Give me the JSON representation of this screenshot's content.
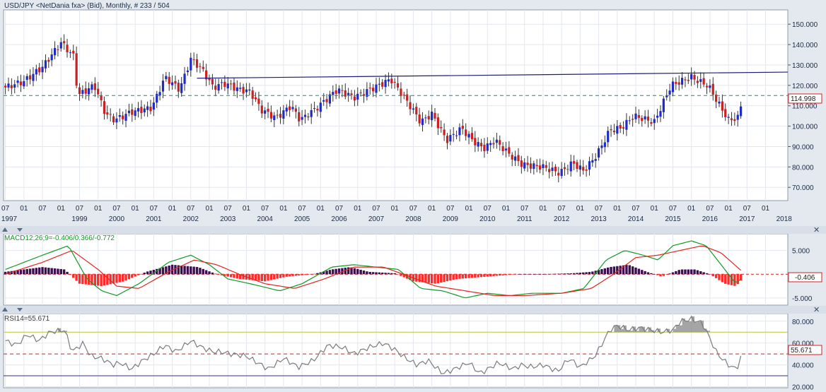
{
  "header": {
    "title": "USD/JPY <NetDania fxa> (Bid), Monthly, # 233 / 504"
  },
  "price_tag": "114.998",
  "macd_tag": "-0.406",
  "rsi_tag": "55.671",
  "colors": {
    "up": "#1f2bc8",
    "down": "#cc1f1f",
    "macd": "#0e9b25",
    "signal": "#e0261f",
    "hist_pos": "#3d0f52",
    "hist_neg": "#ff2a2a",
    "rsi_line": "#7b7b7b",
    "trendline": "#1d1d7a",
    "dashed_level": "#1a8a7a",
    "rsi_upper": "#b9c43a",
    "rsi_lower": "#3d2a8a"
  },
  "close_icon": "✕",
  "chart_data": [
    {
      "type": "candlestick",
      "title": "USD/JPY <NetDania fxa> (Bid), Monthly, # 233 / 504",
      "y_ticks": [
        "150.000",
        "140.000",
        "130.000",
        "120.000",
        "110.000",
        "100.000",
        "90.000",
        "80.000",
        "70.000"
      ],
      "ylim": [
        63.5,
        157
      ],
      "x_month_labels": [
        "07",
        "01",
        "07",
        "01",
        "07",
        "01",
        "07",
        "01",
        "07",
        "01",
        "07",
        "01",
        "07",
        "01",
        "07",
        "01",
        "07",
        "01",
        "07",
        "01",
        "07",
        "01",
        "07",
        "01",
        "07",
        "01",
        "07",
        "01",
        "07",
        "01",
        "07",
        "01",
        "07",
        "01",
        "07",
        "01",
        "07",
        "01",
        "07",
        "01",
        "07",
        "01"
      ],
      "x_year_labels": [
        "1997",
        "1999",
        "2000",
        "2001",
        "2002",
        "2003",
        "2004",
        "2005",
        "2006",
        "2007",
        "2008",
        "2009",
        "2010",
        "2011",
        "2012",
        "2013",
        "2014",
        "2015",
        "2016",
        "2017",
        "2018"
      ],
      "last_close": 114.998,
      "horizontal_level": 114.998,
      "trendline": {
        "from": {
          "date": "2002-03",
          "value": 123.5
        },
        "to": {
          "date": "2018-02",
          "value": 126.5
        }
      },
      "close_path": [
        [
          1997.0,
          119
        ],
        [
          1997.5,
          122
        ],
        [
          1998.0,
          129
        ],
        [
          1998.5,
          141
        ],
        [
          1998.85,
          134
        ],
        [
          1998.95,
          115
        ],
        [
          1999.4,
          120
        ],
        [
          1999.7,
          106
        ],
        [
          1999.95,
          103
        ],
        [
          2000.4,
          107
        ],
        [
          2000.95,
          109
        ],
        [
          2001.3,
          124
        ],
        [
          2001.7,
          118
        ],
        [
          2002.0,
          133
        ],
        [
          2002.3,
          128
        ],
        [
          2002.6,
          119
        ],
        [
          2002.9,
          121
        ],
        [
          2003.3,
          118
        ],
        [
          2003.6,
          117
        ],
        [
          2003.9,
          108
        ],
        [
          2004.3,
          104
        ],
        [
          2004.7,
          110
        ],
        [
          2004.95,
          103
        ],
        [
          2005.4,
          109
        ],
        [
          2005.95,
          118
        ],
        [
          2006.4,
          114
        ],
        [
          2006.95,
          119
        ],
        [
          2007.4,
          123
        ],
        [
          2007.6,
          118
        ],
        [
          2007.95,
          109
        ],
        [
          2008.2,
          102
        ],
        [
          2008.5,
          106
        ],
        [
          2008.9,
          93
        ],
        [
          2009.3,
          99
        ],
        [
          2009.6,
          93
        ],
        [
          2009.9,
          89
        ],
        [
          2010.2,
          93
        ],
        [
          2010.6,
          86
        ],
        [
          2010.95,
          81
        ],
        [
          2011.5,
          80
        ],
        [
          2011.95,
          77
        ],
        [
          2012.3,
          82
        ],
        [
          2012.6,
          78
        ],
        [
          2012.95,
          86
        ],
        [
          2013.3,
          98
        ],
        [
          2013.6,
          99
        ],
        [
          2013.95,
          105
        ],
        [
          2014.5,
          102
        ],
        [
          2014.95,
          120
        ],
        [
          2015.5,
          124
        ],
        [
          2015.8,
          121
        ],
        [
          2015.95,
          120
        ],
        [
          2016.2,
          112
        ],
        [
          2016.5,
          103
        ],
        [
          2016.75,
          104
        ],
        [
          2016.9,
          114.998
        ]
      ]
    },
    {
      "type": "line",
      "title": "MACD12;26;9=-0.406/0.366/-0.772",
      "series": [
        {
          "name": "MACD12;26;9",
          "values_path": [
            [
              1997,
              1
            ],
            [
              1998,
              4
            ],
            [
              1998.7,
              6
            ],
            [
              1999.2,
              -1
            ],
            [
              1999.6,
              -3.5
            ],
            [
              2000.0,
              -4.5
            ],
            [
              2000.6,
              -2
            ],
            [
              2001.4,
              2.5
            ],
            [
              2002.0,
              4
            ],
            [
              2002.5,
              2
            ],
            [
              2003.0,
              -1
            ],
            [
              2003.6,
              -2
            ],
            [
              2004.4,
              -3.5
            ],
            [
              2005.0,
              -2
            ],
            [
              2005.8,
              1.5
            ],
            [
              2006.4,
              2
            ],
            [
              2007.0,
              1.5
            ],
            [
              2007.6,
              1
            ],
            [
              2008.2,
              -3
            ],
            [
              2008.8,
              -3.5
            ],
            [
              2009.4,
              -5
            ],
            [
              2010.0,
              -4
            ],
            [
              2010.6,
              -4.5
            ],
            [
              2011.2,
              -4
            ],
            [
              2012.0,
              -4
            ],
            [
              2012.6,
              -3
            ],
            [
              2013.2,
              3
            ],
            [
              2013.7,
              5
            ],
            [
              2014.2,
              4
            ],
            [
              2014.6,
              3
            ],
            [
              2015.0,
              6
            ],
            [
              2015.5,
              7
            ],
            [
              2015.9,
              6
            ],
            [
              2016.3,
              2
            ],
            [
              2016.7,
              -2
            ],
            [
              2016.9,
              -0.406
            ]
          ]
        },
        {
          "name": "signal",
          "values_path": [
            [
              1997,
              0
            ],
            [
              1998,
              2.5
            ],
            [
              1998.8,
              5
            ],
            [
              1999.5,
              1
            ],
            [
              2000.0,
              -2.5
            ],
            [
              2000.6,
              -3
            ],
            [
              2001.4,
              0.5
            ],
            [
              2002.1,
              3
            ],
            [
              2002.7,
              2
            ],
            [
              2003.3,
              0
            ],
            [
              2004.0,
              -2
            ],
            [
              2004.8,
              -3
            ],
            [
              2005.6,
              -1
            ],
            [
              2006.4,
              1.5
            ],
            [
              2007.2,
              1.5
            ],
            [
              2007.9,
              -0.5
            ],
            [
              2008.6,
              -2.5
            ],
            [
              2009.4,
              -3.5
            ],
            [
              2010.2,
              -4.5
            ],
            [
              2011.0,
              -4.5
            ],
            [
              2012.0,
              -4
            ],
            [
              2012.8,
              -3
            ],
            [
              2013.4,
              0
            ],
            [
              2014.0,
              3.5
            ],
            [
              2014.6,
              4
            ],
            [
              2015.2,
              5
            ],
            [
              2015.8,
              6
            ],
            [
              2016.3,
              4.5
            ],
            [
              2016.9,
              0.366
            ]
          ]
        }
      ],
      "histogram_path": [
        [
          1997,
          0.5
        ],
        [
          1998,
          1.5
        ],
        [
          1998.6,
          1
        ],
        [
          1999.0,
          -2
        ],
        [
          1999.6,
          -2.5
        ],
        [
          2000.2,
          -1.5
        ],
        [
          2000.8,
          0.5
        ],
        [
          2001.5,
          2
        ],
        [
          2002.2,
          1.5
        ],
        [
          2002.7,
          0
        ],
        [
          2003.3,
          -1
        ],
        [
          2004.0,
          -1.5
        ],
        [
          2004.6,
          -0.5
        ],
        [
          2005.3,
          0
        ],
        [
          2005.8,
          1
        ],
        [
          2006.3,
          1.5
        ],
        [
          2006.8,
          0.5
        ],
        [
          2007.5,
          0.2
        ],
        [
          2008.0,
          -1.5
        ],
        [
          2008.6,
          -2
        ],
        [
          2009.2,
          -1
        ],
        [
          2010.0,
          -0.5
        ],
        [
          2010.8,
          0
        ],
        [
          2011.5,
          0
        ],
        [
          2012.3,
          0.2
        ],
        [
          2012.8,
          0.5
        ],
        [
          2013.3,
          1.5
        ],
        [
          2013.8,
          2
        ],
        [
          2014.3,
          0.5
        ],
        [
          2014.7,
          -0.5
        ],
        [
          2015.2,
          1
        ],
        [
          2015.6,
          1
        ],
        [
          2016.0,
          0
        ],
        [
          2016.4,
          -2
        ],
        [
          2016.7,
          -2.5
        ],
        [
          2016.9,
          -0.772
        ]
      ],
      "y_ticks": [
        "5.000",
        "-5.000"
      ],
      "ylim": [
        -6.5,
        8.5
      ],
      "last_value": -0.406
    },
    {
      "type": "line",
      "title": "RSI14=55.671",
      "series": [
        {
          "name": "RSI14",
          "values_path": [
            [
              1997,
              62
            ],
            [
              1997.3,
              58
            ],
            [
              1997.6,
              68
            ],
            [
              1997.9,
              62
            ],
            [
              1998.2,
              70
            ],
            [
              1998.6,
              72
            ],
            [
              1998.8,
              52
            ],
            [
              1999.1,
              60
            ],
            [
              1999.3,
              48
            ],
            [
              1999.6,
              46
            ],
            [
              1999.9,
              40
            ],
            [
              2000.1,
              42
            ],
            [
              2000.4,
              36
            ],
            [
              2000.7,
              44
            ],
            [
              2001.0,
              50
            ],
            [
              2001.3,
              58
            ],
            [
              2001.6,
              52
            ],
            [
              2002.0,
              62
            ],
            [
              2002.3,
              56
            ],
            [
              2002.6,
              52
            ],
            [
              2002.8,
              52
            ],
            [
              2003.1,
              50
            ],
            [
              2003.5,
              48
            ],
            [
              2003.8,
              42
            ],
            [
              2004.1,
              36
            ],
            [
              2004.5,
              46
            ],
            [
              2004.9,
              38
            ],
            [
              2005.3,
              44
            ],
            [
              2005.7,
              58
            ],
            [
              2006.1,
              56
            ],
            [
              2006.4,
              50
            ],
            [
              2006.8,
              56
            ],
            [
              2007.2,
              60
            ],
            [
              2007.5,
              54
            ],
            [
              2007.8,
              46
            ],
            [
              2008.1,
              40
            ],
            [
              2008.4,
              44
            ],
            [
              2008.8,
              32
            ],
            [
              2009.1,
              36
            ],
            [
              2009.5,
              42
            ],
            [
              2009.8,
              32
            ],
            [
              2010.0,
              36
            ],
            [
              2010.3,
              42
            ],
            [
              2010.7,
              36
            ],
            [
              2010.9,
              40
            ],
            [
              2011.2,
              38
            ],
            [
              2011.5,
              40
            ],
            [
              2011.9,
              34
            ],
            [
              2012.2,
              46
            ],
            [
              2012.5,
              38
            ],
            [
              2012.9,
              48
            ],
            [
              2013.1,
              60
            ],
            [
              2013.3,
              72
            ],
            [
              2013.5,
              76
            ],
            [
              2013.8,
              72
            ],
            [
              2014.1,
              74
            ],
            [
              2014.4,
              72
            ],
            [
              2014.7,
              70
            ],
            [
              2015.0,
              72
            ],
            [
              2015.2,
              80
            ],
            [
              2015.5,
              82
            ],
            [
              2015.8,
              78
            ],
            [
              2016.0,
              64
            ],
            [
              2016.2,
              50
            ],
            [
              2016.5,
              40
            ],
            [
              2016.7,
              36
            ],
            [
              2016.8,
              42
            ],
            [
              2016.9,
              55.671
            ]
          ]
        }
      ],
      "levels": [
        70,
        50,
        30
      ],
      "y_ticks": [
        "80.000",
        "60.000",
        "40.000",
        "20.000"
      ],
      "ylim": [
        19,
        87
      ],
      "last_value": 55.671
    }
  ]
}
